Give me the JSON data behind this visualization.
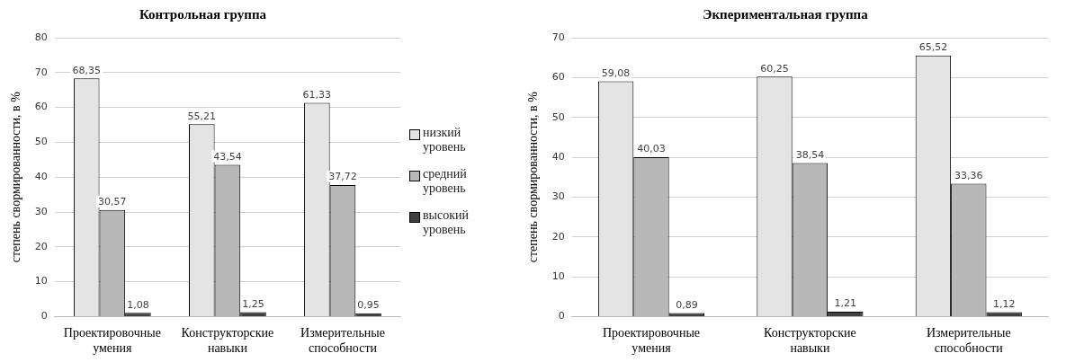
{
  "chart_data": [
    {
      "type": "bar",
      "title": "Контрольная группа",
      "ylabel": "степень свормированности, в %",
      "categories": [
        "Проектировочные умения",
        "Конструкторские навыки",
        "Измерительные способности"
      ],
      "ylim": [
        0,
        80
      ],
      "yticks": [
        0,
        10,
        20,
        30,
        40,
        50,
        60,
        70,
        80
      ],
      "grid": "y",
      "legend": "right",
      "series": [
        {
          "name": "низкий уровень",
          "color": "#e4e4e4",
          "values": [
            68.35,
            55.21,
            61.33
          ],
          "value_labels": [
            "68,35",
            "55,21",
            "61,33"
          ]
        },
        {
          "name": "средний уровень",
          "color": "#b8b8b8",
          "values": [
            30.57,
            43.54,
            37.72
          ],
          "value_labels": [
            "30,57",
            "43,54",
            "37,72"
          ]
        },
        {
          "name": "высокий уровень",
          "color": "#404040",
          "values": [
            1.08,
            1.25,
            0.95
          ],
          "value_labels": [
            "1,08",
            "1,25",
            "0,95"
          ]
        }
      ]
    },
    {
      "type": "bar",
      "title": "Экпериментальная группа",
      "ylabel": "степень свормированности, в %",
      "categories": [
        "Проектировочные умения",
        "Конструкторские навыки",
        "Измерительные способности"
      ],
      "ylim": [
        0,
        70
      ],
      "yticks": [
        0,
        10,
        20,
        30,
        40,
        50,
        60,
        70
      ],
      "grid": "y",
      "series": [
        {
          "color": "#e4e4e4",
          "values": [
            59.08,
            60.25,
            65.52
          ],
          "value_labels": [
            "59,08",
            "60,25",
            "65,52"
          ]
        },
        {
          "color": "#b8b8b8",
          "values": [
            40.03,
            38.54,
            33.36
          ],
          "value_labels": [
            "40,03",
            "38,54",
            "33,36"
          ]
        },
        {
          "color": "#404040",
          "values": [
            0.89,
            1.21,
            1.12
          ],
          "value_labels": [
            "0,89",
            "1,21",
            "1,12"
          ]
        }
      ]
    }
  ]
}
